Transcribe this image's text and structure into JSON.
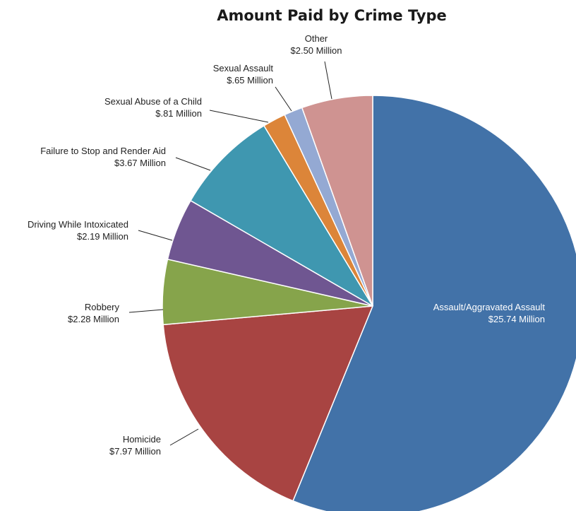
{
  "chart_data": {
    "type": "pie",
    "title": "Amount Paid by Crime Type",
    "unit": "Million",
    "slices": [
      {
        "name": "Assault/Aggravated Assault",
        "value": 25.74,
        "label_value": "$25.74 Million",
        "color": "#4272a8"
      },
      {
        "name": "Homicide",
        "value": 7.97,
        "label_value": "$7.97 Million",
        "color": "#a84442"
      },
      {
        "name": "Robbery",
        "value": 2.28,
        "label_value": "$2.28 Million",
        "color": "#86a44b"
      },
      {
        "name": "Driving While Intoxicated",
        "value": 2.19,
        "label_value": "$2.19 Million",
        "color": "#6f5691"
      },
      {
        "name": "Failure to Stop and Render Aid",
        "value": 3.67,
        "label_value": "$3.67 Million",
        "color": "#3f97b0"
      },
      {
        "name": "Sexual Abuse of a Child",
        "value": 0.81,
        "label_value": "$.81 Million",
        "color": "#dc8539"
      },
      {
        "name": "Sexual Assault",
        "value": 0.65,
        "label_value": "$.65 Million",
        "color": "#94a9d3"
      },
      {
        "name": "Other",
        "value": 2.5,
        "label_value": "$2.50 Million",
        "color": "#cf9391"
      }
    ],
    "start_angle": "12 o'clock",
    "direction": "clockwise",
    "legend": "none"
  }
}
